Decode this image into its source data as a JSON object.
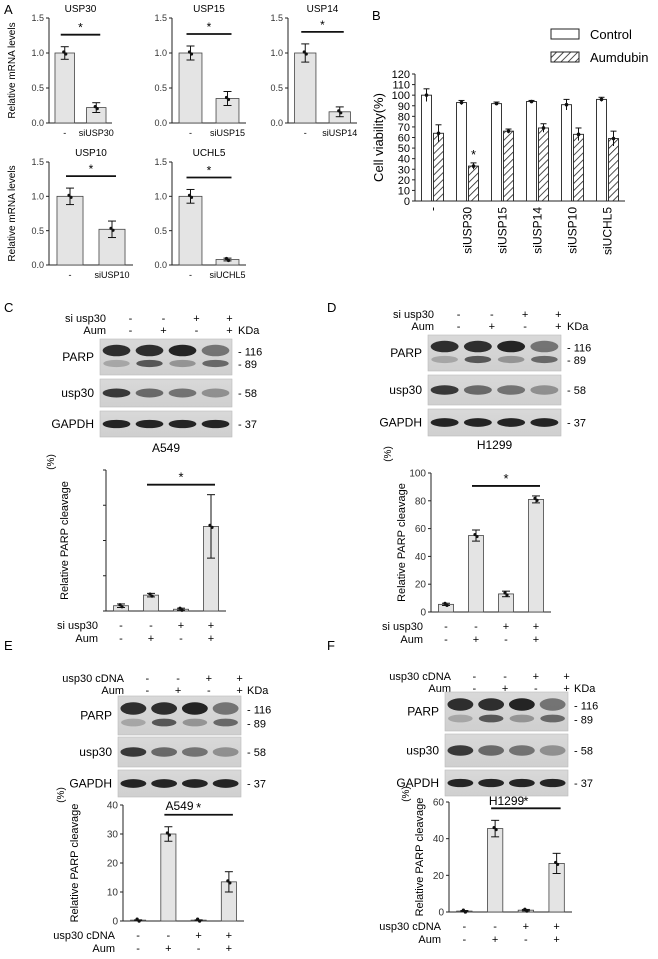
{
  "panel_letters": [
    "A",
    "B",
    "C",
    "D",
    "E",
    "F"
  ],
  "sig_mark": "*",
  "kda_label": "KDa",
  "chart_data": [
    {
      "id": "A1",
      "type": "bar",
      "title": "USP30",
      "ylabel": "Relative mRNA levels",
      "ylim": [
        0,
        1.5
      ],
      "yticks": [
        "0.0",
        "0.5",
        "1.0",
        "1.5"
      ],
      "categories": [
        "-",
        "siUSP30"
      ],
      "values": [
        1.0,
        0.22
      ],
      "errors": [
        0.09,
        0.07
      ],
      "sig": [
        0,
        1
      ]
    },
    {
      "id": "A2",
      "type": "bar",
      "title": "USP15",
      "ylabel": "",
      "ylim": [
        0,
        1.5
      ],
      "yticks": [
        "0.0",
        "0.5",
        "1.0",
        "1.5"
      ],
      "categories": [
        "-",
        "siUSP15"
      ],
      "values": [
        1.0,
        0.35
      ],
      "errors": [
        0.1,
        0.1
      ],
      "sig": [
        0,
        1
      ]
    },
    {
      "id": "A3",
      "type": "bar",
      "title": "USP14",
      "ylabel": "",
      "ylim": [
        0,
        1.5
      ],
      "yticks": [
        "0.0",
        "0.5",
        "1.0",
        "1.5"
      ],
      "categories": [
        "-",
        "siUSP14"
      ],
      "values": [
        1.0,
        0.16
      ],
      "errors": [
        0.13,
        0.07
      ],
      "sig": [
        0,
        1
      ]
    },
    {
      "id": "A4",
      "type": "bar",
      "title": "USP10",
      "ylabel": "Relative mRNA levels",
      "ylim": [
        0,
        1.5
      ],
      "yticks": [
        "0.0",
        "0.5",
        "1.0",
        "1.5"
      ],
      "categories": [
        "-",
        "siUSP10"
      ],
      "values": [
        1.0,
        0.52
      ],
      "errors": [
        0.12,
        0.12
      ],
      "sig": [
        0,
        1
      ]
    },
    {
      "id": "A5",
      "type": "bar",
      "title": "UCHL5",
      "ylabel": "",
      "ylim": [
        0,
        1.5
      ],
      "yticks": [
        "0.0",
        "0.5",
        "1.0",
        "1.5"
      ],
      "categories": [
        "-",
        "siUCHL5"
      ],
      "values": [
        1.0,
        0.08
      ],
      "errors": [
        0.1,
        0.02
      ],
      "sig": [
        0,
        1
      ]
    },
    {
      "id": "B",
      "type": "bar",
      "title": "",
      "ylabel": "Cell viability(%)",
      "ylim": [
        0,
        120
      ],
      "yticks": [
        "0",
        "10",
        "20",
        "30",
        "40",
        "50",
        "60",
        "70",
        "80",
        "90",
        "100",
        "110",
        "120"
      ],
      "categories": [
        "-",
        "siUSP30",
        "siUSP15",
        "siUSP14",
        "siUSP10",
        "siUCHL5"
      ],
      "series": [
        {
          "name": "Control",
          "values": [
            100,
            93,
            92,
            94,
            91,
            96
          ],
          "errors": [
            6,
            2,
            1.5,
            1,
            5,
            2
          ]
        },
        {
          "name": "Aumdubin",
          "values": [
            64,
            33,
            66,
            69,
            63,
            59
          ],
          "errors": [
            8,
            3,
            2,
            4,
            6,
            7
          ]
        }
      ],
      "annotations": [
        {
          "text": "*",
          "category": "siUSP30",
          "series": "Aumdubin"
        }
      ],
      "legend": "top-right"
    },
    {
      "id": "C",
      "type": "bar",
      "title": "",
      "ylabel": "Relative PARP cleavage",
      "ylabel_unit": "(%)",
      "ylim": [
        0,
        40
      ],
      "yticks": [],
      "values": [
        1.5,
        4.5,
        0.5,
        24
      ],
      "errors": [
        0.5,
        0.5,
        0.3,
        9
      ],
      "sig": [
        1,
        3
      ],
      "row_labels": [
        "si usp30",
        "Aum"
      ],
      "row_values": [
        [
          "-",
          "-",
          "+",
          "+"
        ],
        [
          "-",
          "+",
          "-",
          "+"
        ]
      ]
    },
    {
      "id": "D",
      "type": "bar",
      "title": "",
      "ylabel": "Relative PARP cleavage",
      "ylabel_unit": "(%)",
      "ylim": [
        0,
        100
      ],
      "yticks": [
        "0",
        "20",
        "40",
        "60",
        "80",
        "100"
      ],
      "values": [
        5.5,
        55,
        13,
        81
      ],
      "errors": [
        0.8,
        4,
        2,
        2.5
      ],
      "sig": [
        1,
        3
      ],
      "row_labels": [
        "si usp30",
        "Aum"
      ],
      "row_values": [
        [
          "-",
          "-",
          "+",
          "+"
        ],
        [
          "-",
          "+",
          "-",
          "+"
        ]
      ]
    },
    {
      "id": "E",
      "type": "bar",
      "title": "",
      "ylabel": "Relative PARP cleavage",
      "ylabel_unit": "(%)",
      "ylim": [
        0,
        40
      ],
      "yticks": [
        "0",
        "10",
        "20",
        "30",
        "40"
      ],
      "values": [
        0.3,
        30,
        0.3,
        13.5
      ],
      "errors": [
        0.1,
        2.5,
        0.1,
        3.5
      ],
      "sig": [
        1,
        3
      ],
      "row_labels": [
        "usp30 cDNA",
        "Aum"
      ],
      "row_values": [
        [
          "-",
          "-",
          "+",
          "+"
        ],
        [
          "-",
          "+",
          "-",
          "+"
        ]
      ]
    },
    {
      "id": "F",
      "type": "bar",
      "title": "",
      "ylabel": "Relative PARP cleavage",
      "ylabel_unit": "(%)",
      "ylim": [
        0,
        60
      ],
      "yticks": [
        "0",
        "20",
        "40",
        "60"
      ],
      "values": [
        0.5,
        45.5,
        1,
        26.5
      ],
      "errors": [
        0.3,
        4.5,
        0.4,
        5.5
      ],
      "sig": [
        1,
        3
      ],
      "row_labels": [
        "usp30 cDNA",
        "Aum"
      ],
      "row_values": [
        [
          "-",
          "-",
          "+",
          "+"
        ],
        [
          "-",
          "+",
          "-",
          "+"
        ]
      ]
    }
  ],
  "blots": [
    {
      "id": "C",
      "cell_line": "A549",
      "top_labels": [
        "si usp30",
        "Aum"
      ],
      "top_values": [
        [
          "-",
          "-",
          "+",
          "+"
        ],
        [
          "-",
          "+",
          "-",
          "+"
        ]
      ],
      "rows": [
        {
          "label": "PARP",
          "markers": [
            "116",
            "89"
          ]
        },
        {
          "label": "usp30",
          "markers": [
            "58"
          ]
        },
        {
          "label": "GAPDH",
          "markers": [
            "37"
          ]
        }
      ]
    },
    {
      "id": "D",
      "cell_line": "H1299",
      "top_labels": [
        "si usp30",
        "Aum"
      ],
      "top_values": [
        [
          "-",
          "-",
          "+",
          "+"
        ],
        [
          "-",
          "+",
          "-",
          "+"
        ]
      ],
      "rows": [
        {
          "label": "PARP",
          "markers": [
            "116",
            "89"
          ]
        },
        {
          "label": "usp30",
          "markers": [
            "58"
          ]
        },
        {
          "label": "GAPDH",
          "markers": [
            "37"
          ]
        }
      ]
    },
    {
      "id": "E",
      "cell_line": "A549",
      "top_labels": [
        "usp30 cDNA",
        "Aum"
      ],
      "top_values": [
        [
          "-",
          "-",
          "+",
          "+"
        ],
        [
          "-",
          "+",
          "-",
          "+"
        ]
      ],
      "rows": [
        {
          "label": "PARP",
          "markers": [
            "116",
            "89"
          ]
        },
        {
          "label": "usp30",
          "markers": [
            "58"
          ]
        },
        {
          "label": "GAPDH",
          "markers": [
            "37"
          ]
        }
      ]
    },
    {
      "id": "F",
      "cell_line": "H1299",
      "top_labels": [
        "usp30 cDNA",
        "Aum"
      ],
      "top_values": [
        [
          "-",
          "-",
          "+",
          "+"
        ],
        [
          "-",
          "+",
          "-",
          "+"
        ]
      ],
      "rows": [
        {
          "label": "PARP",
          "markers": [
            "116",
            "89"
          ]
        },
        {
          "label": "usp30",
          "markers": [
            "58"
          ]
        },
        {
          "label": "GAPDH",
          "markers": [
            "37"
          ]
        }
      ]
    }
  ]
}
